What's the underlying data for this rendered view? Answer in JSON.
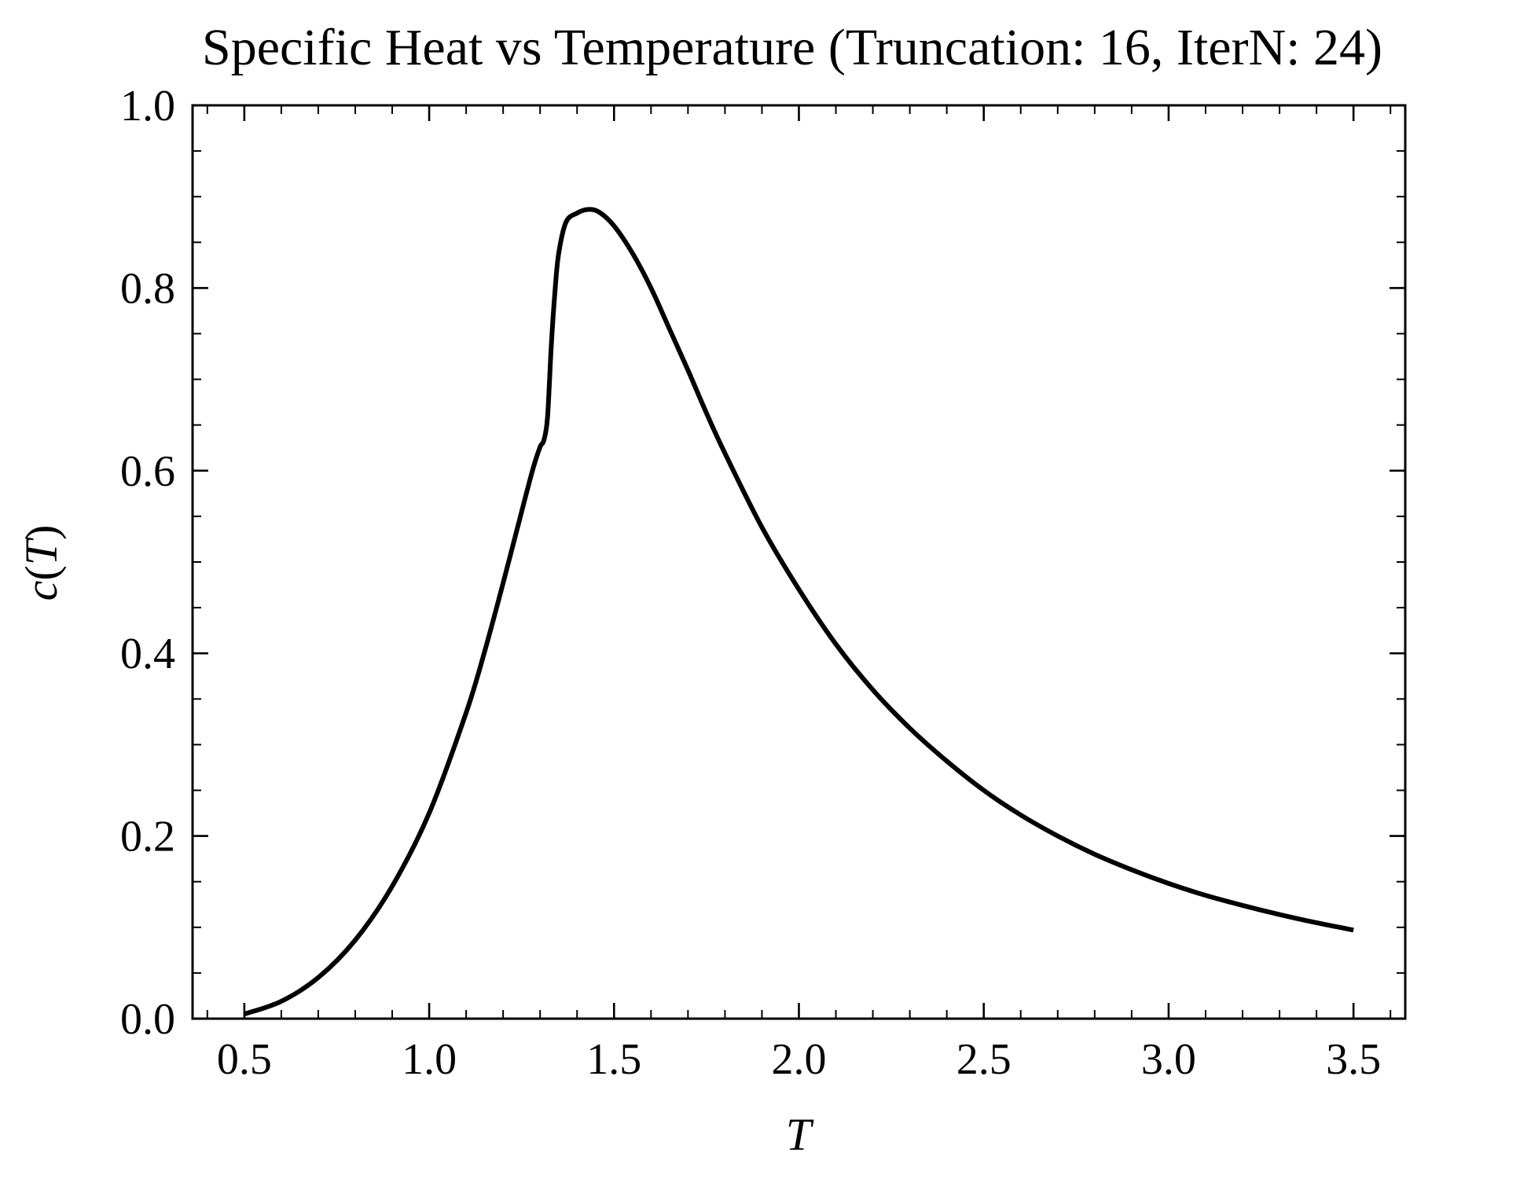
{
  "chart_data": {
    "type": "line",
    "title": "Specific Heat vs Temperature (Truncation: 16, IterN: 24)",
    "xlabel": "T",
    "ylabel": "c(T)",
    "xlim": [
      0.36,
      3.64
    ],
    "ylim": [
      0.0,
      1.0
    ],
    "xticks": [
      0.5,
      1.0,
      1.5,
      2.0,
      2.5,
      3.0,
      3.5
    ],
    "xtick_labels": [
      "0.5",
      "1.0",
      "1.5",
      "2.0",
      "2.5",
      "3.0",
      "3.5"
    ],
    "xminor_step": 0.1,
    "yticks": [
      0.0,
      0.2,
      0.4,
      0.6,
      0.8,
      1.0
    ],
    "ytick_labels": [
      "0.0",
      "0.2",
      "0.4",
      "0.6",
      "0.8",
      "1.0"
    ],
    "yminor_step": 0.05,
    "grid": false,
    "series": [
      {
        "color": "#000000",
        "x": [
          0.5,
          0.6,
          0.7,
          0.8,
          0.9,
          1.0,
          1.1,
          1.15,
          1.2,
          1.25,
          1.28,
          1.3,
          1.31,
          1.32,
          1.33,
          1.34,
          1.35,
          1.37,
          1.4,
          1.43,
          1.46,
          1.5,
          1.55,
          1.6,
          1.65,
          1.7,
          1.75,
          1.8,
          1.9,
          2.0,
          2.1,
          2.2,
          2.3,
          2.4,
          2.5,
          2.6,
          2.7,
          2.8,
          2.9,
          3.0,
          3.1,
          3.2,
          3.3,
          3.4,
          3.5
        ],
        "y": [
          0.005,
          0.019,
          0.045,
          0.086,
          0.145,
          0.225,
          0.335,
          0.402,
          0.477,
          0.555,
          0.601,
          0.626,
          0.633,
          0.658,
          0.735,
          0.795,
          0.837,
          0.872,
          0.882,
          0.886,
          0.883,
          0.868,
          0.838,
          0.8,
          0.755,
          0.71,
          0.663,
          0.619,
          0.538,
          0.47,
          0.41,
          0.36,
          0.318,
          0.282,
          0.25,
          0.223,
          0.2,
          0.18,
          0.163,
          0.148,
          0.135,
          0.124,
          0.114,
          0.105,
          0.097
        ]
      }
    ]
  }
}
